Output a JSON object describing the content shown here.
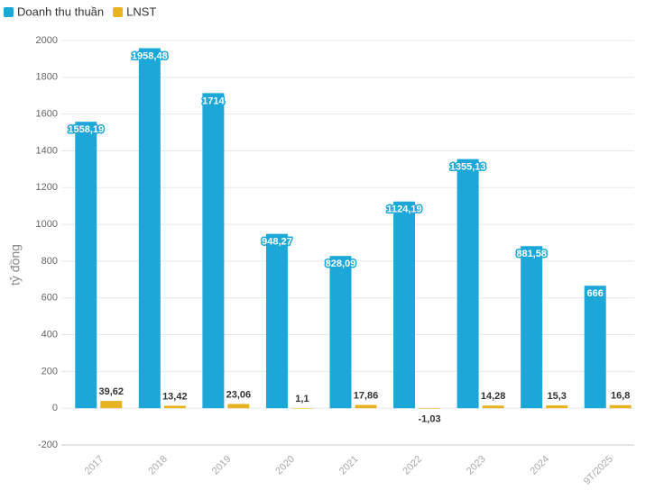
{
  "chart_data": {
    "type": "bar",
    "y_label": "tỷ đồng",
    "categories": [
      "2017",
      "2018",
      "2019",
      "2020",
      "2021",
      "2022",
      "2023",
      "2024",
      "9T/2025"
    ],
    "series": [
      {
        "name": "Doanh thu thuần",
        "color": "#1ba8d9",
        "values": [
          1558.19,
          1958.48,
          1714,
          948.27,
          828.09,
          1124.19,
          1355.13,
          881.58,
          666
        ],
        "value_labels": [
          "1558,19",
          "1958,48",
          "1714",
          "948,27",
          "828,09",
          "1124,19",
          "1355,13",
          "881,58",
          "666"
        ]
      },
      {
        "name": "LNST",
        "color": "#e8b321",
        "values": [
          39.62,
          13.42,
          23.06,
          1.1,
          17.86,
          -1.03,
          14.28,
          15.3,
          16.8
        ],
        "value_labels": [
          "39,62",
          "13,42",
          "23,06",
          "1,1",
          "17,86",
          "-1,03",
          "14,28",
          "15,3",
          "16,8"
        ]
      }
    ],
    "ylim": [
      -200,
      2000
    ],
    "yticks": [
      -200,
      0,
      200,
      400,
      600,
      800,
      1000,
      1200,
      1400,
      1600,
      1800,
      2000
    ],
    "grid": true,
    "legend": "top-left"
  }
}
